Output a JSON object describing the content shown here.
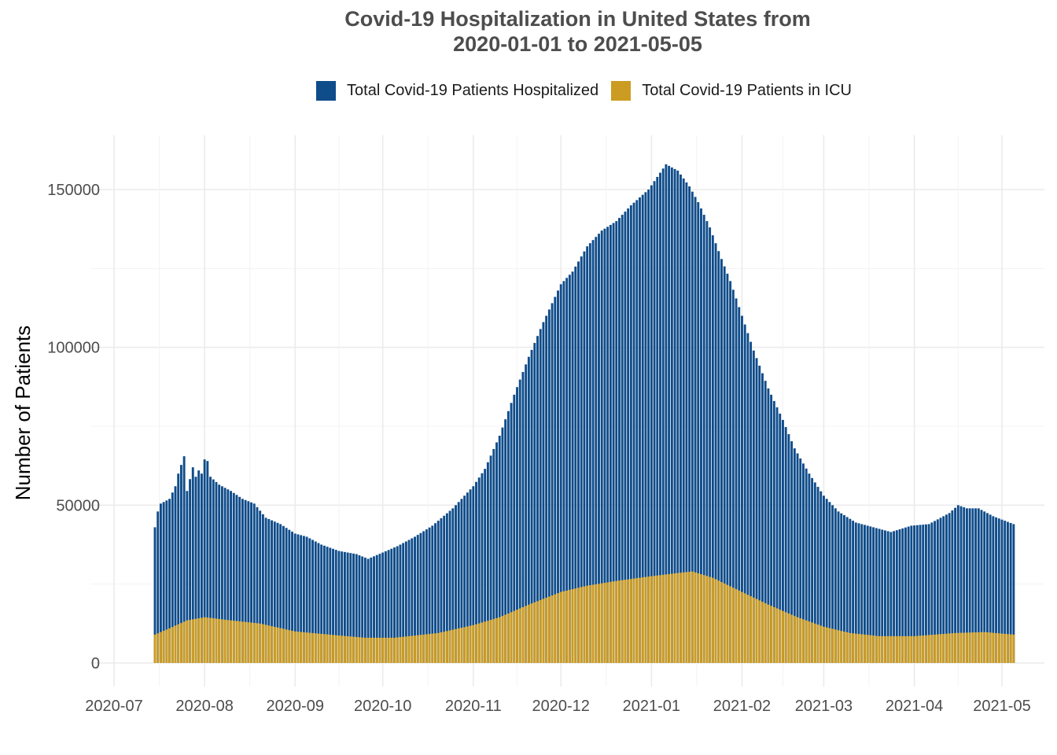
{
  "chart_data": {
    "type": "bar",
    "title_line1": "Covid-19 Hospitalization in United States from",
    "title_line2": "2020-01-01 to 2021-05-05",
    "xlabel": "",
    "ylabel": "Number of Patients",
    "ylim": [
      0,
      160000
    ],
    "grid": true,
    "legend_position": "top",
    "y_ticks": [
      0,
      50000,
      100000,
      150000
    ],
    "x_ticks": [
      "2020-07",
      "2020-08",
      "2020-09",
      "2020-10",
      "2020-11",
      "2020-12",
      "2021-01",
      "2021-02",
      "2021-03",
      "2021-04",
      "2021-05"
    ],
    "x_start": "2020-07-15",
    "x_end": "2021-05-05",
    "colors": {
      "hospitalized": "#0f4c8a",
      "icu": "#cc9b21"
    },
    "series": [
      {
        "name": "Total Covid-19 Patients Hospitalized",
        "anchors": [
          [
            "2020-07-15",
            43000
          ],
          [
            "2020-07-16",
            48000
          ],
          [
            "2020-07-17",
            50500
          ],
          [
            "2020-07-18",
            51000
          ],
          [
            "2020-07-20",
            52000
          ],
          [
            "2020-07-22",
            56000
          ],
          [
            "2020-07-23",
            60000
          ],
          [
            "2020-07-25",
            65500
          ],
          [
            "2020-07-26",
            54500
          ],
          [
            "2020-07-28",
            62000
          ],
          [
            "2020-07-29",
            59000
          ],
          [
            "2020-07-30",
            61000
          ],
          [
            "2020-07-31",
            60000
          ],
          [
            "2020-08-01",
            64500
          ],
          [
            "2020-08-02",
            64000
          ],
          [
            "2020-08-03",
            59000
          ],
          [
            "2020-08-06",
            56500
          ],
          [
            "2020-08-10",
            54500
          ],
          [
            "2020-08-14",
            52000
          ],
          [
            "2020-08-18",
            50500
          ],
          [
            "2020-08-22",
            46000
          ],
          [
            "2020-08-27",
            44000
          ],
          [
            "2020-09-01",
            41000
          ],
          [
            "2020-09-05",
            40000
          ],
          [
            "2020-09-10",
            37500
          ],
          [
            "2020-09-16",
            35500
          ],
          [
            "2020-09-22",
            34500
          ],
          [
            "2020-09-26",
            33000
          ],
          [
            "2020-10-01",
            35000
          ],
          [
            "2020-10-06",
            37000
          ],
          [
            "2020-10-12",
            40000
          ],
          [
            "2020-10-18",
            43500
          ],
          [
            "2020-10-25",
            49000
          ],
          [
            "2020-11-01",
            56000
          ],
          [
            "2020-11-05",
            61500
          ],
          [
            "2020-11-10",
            72000
          ],
          [
            "2020-11-15",
            85000
          ],
          [
            "2020-11-20",
            97000
          ],
          [
            "2020-11-25",
            108000
          ],
          [
            "2020-12-01",
            120000
          ],
          [
            "2020-12-05",
            124000
          ],
          [
            "2020-12-10",
            132000
          ],
          [
            "2020-12-15",
            137000
          ],
          [
            "2020-12-20",
            140000
          ],
          [
            "2020-12-25",
            145000
          ],
          [
            "2020-12-31",
            150000
          ],
          [
            "2021-01-06",
            158000
          ],
          [
            "2021-01-10",
            156000
          ],
          [
            "2021-01-14",
            151000
          ],
          [
            "2021-01-17",
            146000
          ],
          [
            "2021-01-21",
            138000
          ],
          [
            "2021-01-25",
            128000
          ],
          [
            "2021-01-28",
            121000
          ],
          [
            "2021-02-01",
            110000
          ],
          [
            "2021-02-05",
            99000
          ],
          [
            "2021-02-10",
            87000
          ],
          [
            "2021-02-15",
            77000
          ],
          [
            "2021-02-19",
            68000
          ],
          [
            "2021-02-24",
            60000
          ],
          [
            "2021-03-01",
            53000
          ],
          [
            "2021-03-06",
            48000
          ],
          [
            "2021-03-12",
            44500
          ],
          [
            "2021-03-18",
            43000
          ],
          [
            "2021-03-24",
            41500
          ],
          [
            "2021-03-31",
            43500
          ],
          [
            "2021-04-06",
            44000
          ],
          [
            "2021-04-13",
            47500
          ],
          [
            "2021-04-16",
            50000
          ],
          [
            "2021-04-19",
            49000
          ],
          [
            "2021-04-23",
            49000
          ],
          [
            "2021-04-28",
            46500
          ],
          [
            "2021-05-05",
            44000
          ]
        ]
      },
      {
        "name": "Total Covid-19 Patients in ICU",
        "anchors": [
          [
            "2020-07-15",
            9000
          ],
          [
            "2020-07-20",
            11000
          ],
          [
            "2020-07-26",
            13500
          ],
          [
            "2020-08-01",
            14500
          ],
          [
            "2020-08-10",
            13500
          ],
          [
            "2020-08-20",
            12500
          ],
          [
            "2020-09-01",
            10000
          ],
          [
            "2020-09-15",
            8800
          ],
          [
            "2020-09-25",
            8000
          ],
          [
            "2020-10-05",
            8000
          ],
          [
            "2020-10-20",
            9500
          ],
          [
            "2020-11-01",
            12000
          ],
          [
            "2020-11-10",
            14500
          ],
          [
            "2020-11-20",
            18500
          ],
          [
            "2020-12-01",
            22500
          ],
          [
            "2020-12-10",
            24500
          ],
          [
            "2020-12-20",
            26000
          ],
          [
            "2021-01-01",
            27500
          ],
          [
            "2021-01-10",
            28500
          ],
          [
            "2021-01-15",
            29000
          ],
          [
            "2021-01-22",
            27000
          ],
          [
            "2021-02-01",
            22500
          ],
          [
            "2021-02-10",
            18500
          ],
          [
            "2021-02-20",
            14500
          ],
          [
            "2021-03-01",
            11500
          ],
          [
            "2021-03-10",
            9500
          ],
          [
            "2021-03-20",
            8500
          ],
          [
            "2021-04-01",
            8500
          ],
          [
            "2021-04-15",
            9500
          ],
          [
            "2021-04-25",
            9800
          ],
          [
            "2021-05-05",
            9000
          ]
        ]
      }
    ]
  }
}
